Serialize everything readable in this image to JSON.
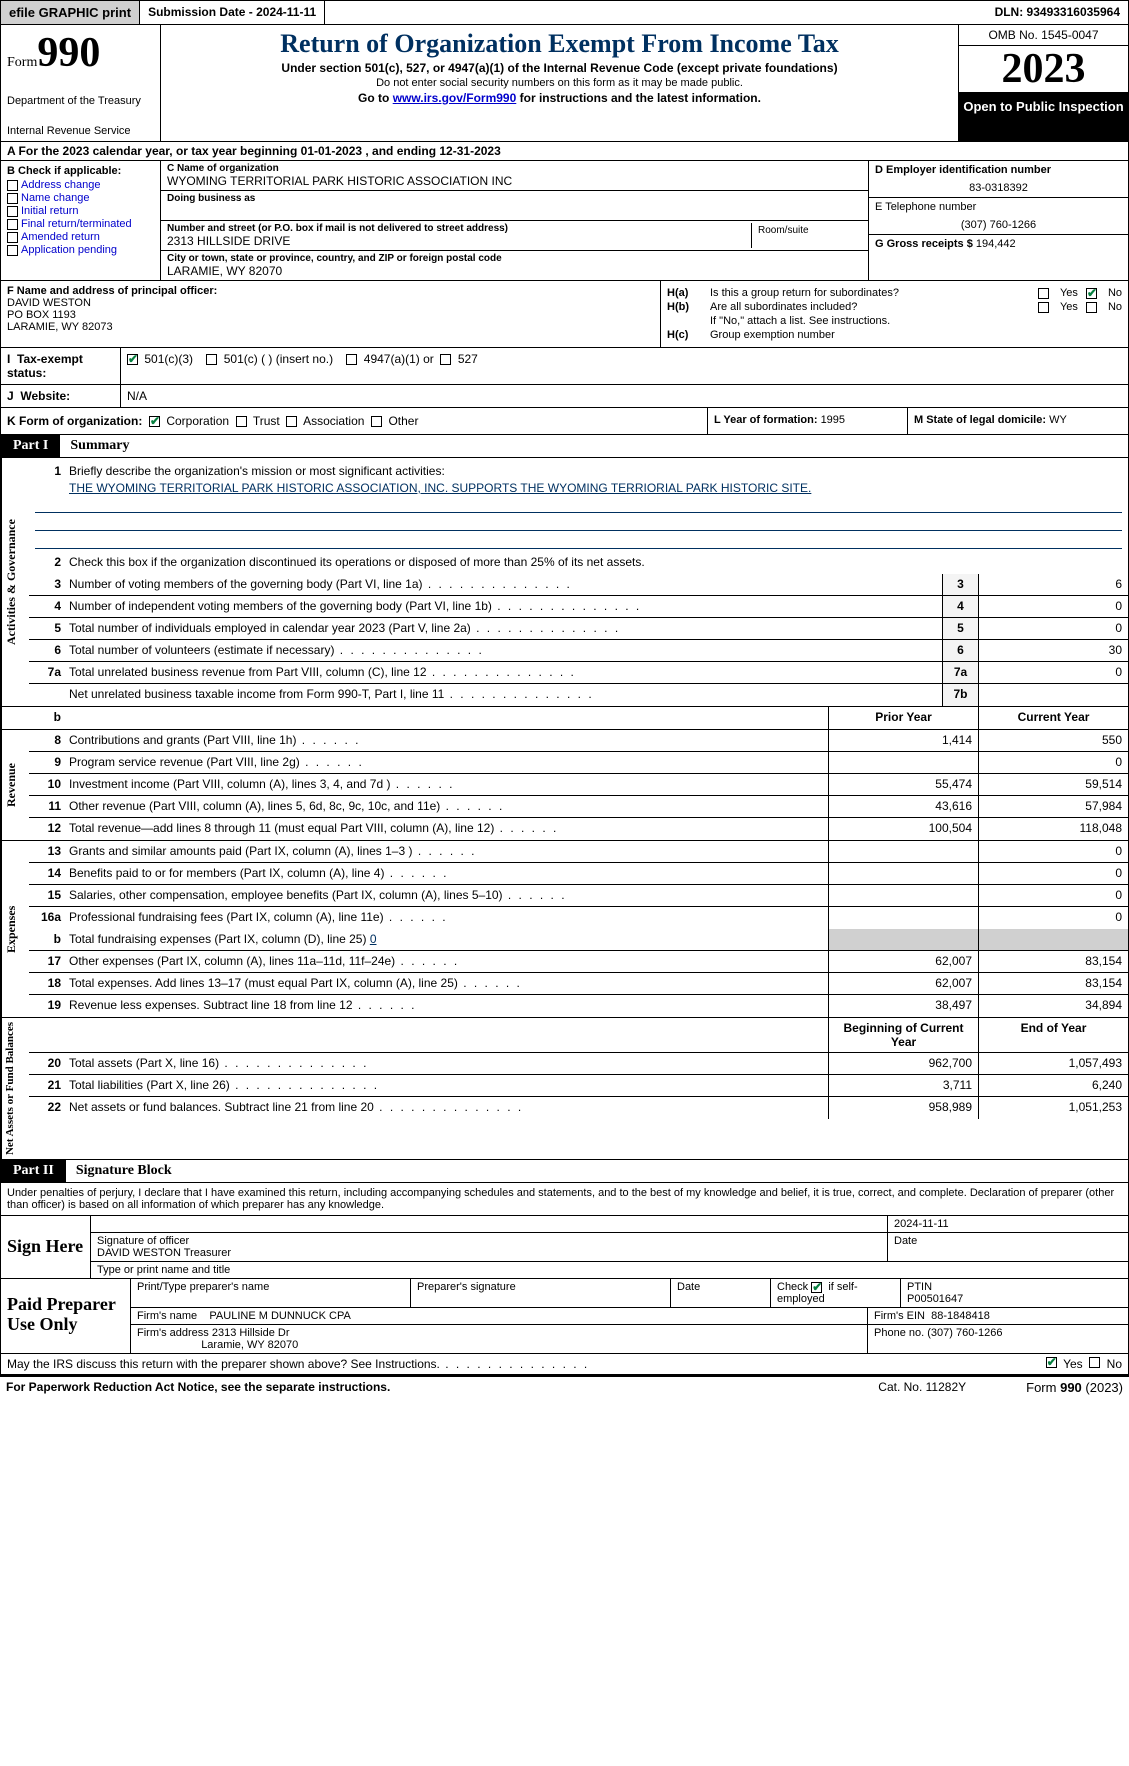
{
  "topbar": {
    "efile": "efile GRAPHIC print",
    "submission": "Submission Date - 2024-11-11",
    "dln": "DLN: 93493316035964"
  },
  "header": {
    "form_label": "Form",
    "form_num": "990",
    "dept1": "Department of the Treasury",
    "dept2": "Internal Revenue Service",
    "title": "Return of Organization Exempt From Income Tax",
    "sub1": "Under section 501(c), 527, or 4947(a)(1) of the Internal Revenue Code (except private foundations)",
    "sub2": "Do not enter social security numbers on this form as it may be made public.",
    "sub3a": "Go to ",
    "sub3_link": "www.irs.gov/Form990",
    "sub3b": " for instructions and the latest information.",
    "omb": "OMB No. 1545-0047",
    "year": "2023",
    "open": "Open to Public Inspection"
  },
  "row_a": "A For the 2023 calendar year, or tax year beginning 01-01-2023    , and ending 12-31-2023",
  "col_b": {
    "label": "B Check if applicable:",
    "opts": [
      "Address change",
      "Name change",
      "Initial return",
      "Final return/terminated",
      "Amended return",
      "Application pending"
    ]
  },
  "col_c": {
    "name_lab": "C Name of organization",
    "name_val": "WYOMING TERRITORIAL PARK HISTORIC ASSOCIATION INC",
    "dba_lab": "Doing business as",
    "addr_lab": "Number and street (or P.O. box if mail is not delivered to street address)",
    "addr_val": "2313 HILLSIDE DRIVE",
    "room_lab": "Room/suite",
    "city_lab": "City or town, state or province, country, and ZIP or foreign postal code",
    "city_val": "LARAMIE, WY  82070"
  },
  "col_d": {
    "lab": "D Employer identification number",
    "val": "83-0318392"
  },
  "col_e": {
    "lab": "E Telephone number",
    "val": "(307) 760-1266"
  },
  "col_g": {
    "lab": "G Gross receipts $ ",
    "val": "194,442"
  },
  "col_f": {
    "lab": "F  Name and address of principal officer:",
    "l1": "DAVID WESTON",
    "l2": "PO BOX 1193",
    "l3": "LARAMIE, WY  82073"
  },
  "col_h": {
    "a_lab": "H(a)",
    "a_txt": "Is this a group return for subordinates?",
    "b_lab": "H(b)",
    "b_txt": "Are all subordinates included?",
    "b_note": "If \"No,\" attach a list. See instructions.",
    "c_lab": "H(c)",
    "c_txt": "Group exemption number",
    "yes": "Yes",
    "no": "No"
  },
  "row_i": {
    "lab": "I",
    "txt": "Tax-exempt status:",
    "o1": "501(c)(3)",
    "o2": "501(c) (  ) (insert no.)",
    "o3": "4947(a)(1) or",
    "o4": "527"
  },
  "row_j": {
    "lab": "J",
    "txt": "Website:",
    "val": "N/A"
  },
  "row_k": {
    "lab": "K Form of organization:",
    "o1": "Corporation",
    "o2": "Trust",
    "o3": "Association",
    "o4": "Other",
    "l_lab": "L Year of formation: ",
    "l_val": "1995",
    "m_lab": "M State of legal domicile: ",
    "m_val": "WY"
  },
  "part1": {
    "tag": "Part I",
    "title": "Summary"
  },
  "sec_ag": {
    "side": "Activities & Governance",
    "l1_lab": "Briefly describe the organization's mission or most significant activities:",
    "l1_val": "THE WYOMING TERRITORIAL PARK HISTORIC ASSOCIATION, INC. SUPPORTS THE WYOMING TERRIORIAL PARK HISTORIC SITE.",
    "l2": "Check this box       if the organization discontinued its operations or disposed of more than 25% of its net assets.",
    "rows": [
      {
        "n": "3",
        "d": "Number of voting members of the governing body (Part VI, line 1a)",
        "box": "3",
        "v": "6"
      },
      {
        "n": "4",
        "d": "Number of independent voting members of the governing body (Part VI, line 1b)",
        "box": "4",
        "v": "0"
      },
      {
        "n": "5",
        "d": "Total number of individuals employed in calendar year 2023 (Part V, line 2a)",
        "box": "5",
        "v": "0"
      },
      {
        "n": "6",
        "d": "Total number of volunteers (estimate if necessary)",
        "box": "6",
        "v": "30"
      },
      {
        "n": "7a",
        "d": "Total unrelated business revenue from Part VIII, column (C), line 12",
        "box": "7a",
        "v": "0"
      },
      {
        "n": "",
        "d": "Net unrelated business taxable income from Form 990-T, Part I, line 11",
        "box": "7b",
        "v": ""
      }
    ]
  },
  "cols_hdr": {
    "b": "b",
    "prior": "Prior Year",
    "curr": "Current Year"
  },
  "sec_rev": {
    "side": "Revenue",
    "rows": [
      {
        "n": "8",
        "d": "Contributions and grants (Part VIII, line 1h)",
        "p": "1,414",
        "c": "550"
      },
      {
        "n": "9",
        "d": "Program service revenue (Part VIII, line 2g)",
        "p": "",
        "c": "0"
      },
      {
        "n": "10",
        "d": "Investment income (Part VIII, column (A), lines 3, 4, and 7d )",
        "p": "55,474",
        "c": "59,514"
      },
      {
        "n": "11",
        "d": "Other revenue (Part VIII, column (A), lines 5, 6d, 8c, 9c, 10c, and 11e)",
        "p": "43,616",
        "c": "57,984"
      },
      {
        "n": "12",
        "d": "Total revenue—add lines 8 through 11 (must equal Part VIII, column (A), line 12)",
        "p": "100,504",
        "c": "118,048"
      }
    ]
  },
  "sec_exp": {
    "side": "Expenses",
    "rows": [
      {
        "n": "13",
        "d": "Grants and similar amounts paid (Part IX, column (A), lines 1–3 )",
        "p": "",
        "c": "0"
      },
      {
        "n": "14",
        "d": "Benefits paid to or for members (Part IX, column (A), line 4)",
        "p": "",
        "c": "0"
      },
      {
        "n": "15",
        "d": "Salaries, other compensation, employee benefits (Part IX, column (A), lines 5–10)",
        "p": "",
        "c": "0"
      },
      {
        "n": "16a",
        "d": "Professional fundraising fees (Part IX, column (A), line 11e)",
        "p": "",
        "c": "0"
      }
    ],
    "l16b_n": "b",
    "l16b_d": "Total fundraising expenses (Part IX, column (D), line 25) ",
    "l16b_v": "0",
    "rows2": [
      {
        "n": "17",
        "d": "Other expenses (Part IX, column (A), lines 11a–11d, 11f–24e)",
        "p": "62,007",
        "c": "83,154"
      },
      {
        "n": "18",
        "d": "Total expenses. Add lines 13–17 (must equal Part IX, column (A), line 25)",
        "p": "62,007",
        "c": "83,154"
      },
      {
        "n": "19",
        "d": "Revenue less expenses. Subtract line 18 from line 12",
        "p": "38,497",
        "c": "34,894"
      }
    ]
  },
  "sec_na": {
    "side": "Net Assets or Fund Balances",
    "hdr_p": "Beginning of Current Year",
    "hdr_c": "End of Year",
    "rows": [
      {
        "n": "20",
        "d": "Total assets (Part X, line 16)",
        "p": "962,700",
        "c": "1,057,493"
      },
      {
        "n": "21",
        "d": "Total liabilities (Part X, line 26)",
        "p": "3,711",
        "c": "6,240"
      },
      {
        "n": "22",
        "d": "Net assets or fund balances. Subtract line 21 from line 20",
        "p": "958,989",
        "c": "1,051,253"
      }
    ]
  },
  "part2": {
    "tag": "Part II",
    "title": "Signature Block"
  },
  "declare": "Under penalties of perjury, I declare that I have examined this return, including accompanying schedules and statements, and to the best of my knowledge and belief, it is true, correct, and complete. Declaration of preparer (other than officer) is based on all information of which preparer has any knowledge.",
  "sign": {
    "here": "Sign Here",
    "date": "2024-11-11",
    "sig_lab": "Signature of officer",
    "date_lab": "Date",
    "name": "DAVID WESTON  Treasurer",
    "type_lab": "Type or print name and title"
  },
  "prep": {
    "label": "Paid Preparer Use Only",
    "r1_c1": "Print/Type preparer's name",
    "r1_c2": "Preparer's signature",
    "r1_c3": "Date",
    "r1_c4a": "Check",
    "r1_c4b": "if self-employed",
    "r1_c5l": "PTIN",
    "r1_c5v": "P00501647",
    "r2_l": "Firm's name",
    "r2_v": "PAULINE M DUNNUCK CPA",
    "r2_rl": "Firm's EIN",
    "r2_rv": "88-1848418",
    "r3_l": "Firm's address",
    "r3_v1": "2313 Hillside Dr",
    "r3_v2": "Laramie, WY  82070",
    "r3_rl": "Phone no.",
    "r3_rv": "(307) 760-1266"
  },
  "discuss": {
    "txt": "May the IRS discuss this return with the preparer shown above? See Instructions.",
    "yes": "Yes",
    "no": "No"
  },
  "footer": {
    "l": "For Paperwork Reduction Act Notice, see the separate instructions.",
    "m": "Cat. No. 11282Y",
    "r1": "Form ",
    "r2": "990",
    "r3": " (2023)"
  },
  "style": {
    "link_color": "#0000cc",
    "title_color": "#003060",
    "check_color": "#078040"
  }
}
